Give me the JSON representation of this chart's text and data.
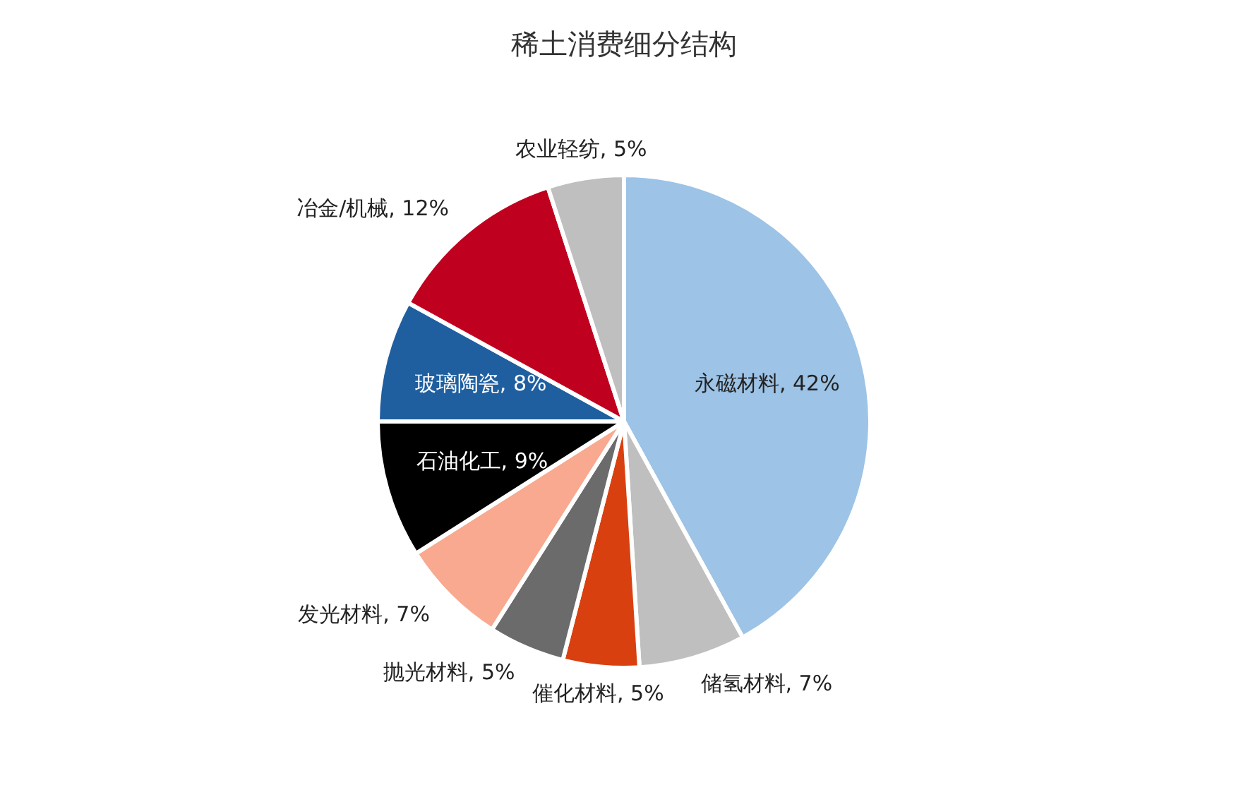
{
  "chart_data": {
    "type": "pie",
    "title": "稀土消费细分结构",
    "categories": [
      "永磁材料",
      "储氢材料",
      "催化材料",
      "抛光材料",
      "发光材料",
      "石油化工",
      "玻璃陶瓷",
      "冶金/机械",
      "农业轻纺"
    ],
    "values": [
      42,
      7,
      5,
      5,
      7,
      9,
      8,
      12,
      5
    ],
    "value_labels": [
      "42%",
      "7%",
      "5%",
      "5%",
      "7%",
      "9%",
      "8%",
      "12%",
      "5%"
    ],
    "colors": [
      "#9dc3e6",
      "#bfbfbf",
      "#d9400f",
      "#6b6b6b",
      "#f8a98f",
      "#000000",
      "#1f5fa0",
      "#c0001f",
      "#bfbfbf"
    ],
    "legend": false
  }
}
